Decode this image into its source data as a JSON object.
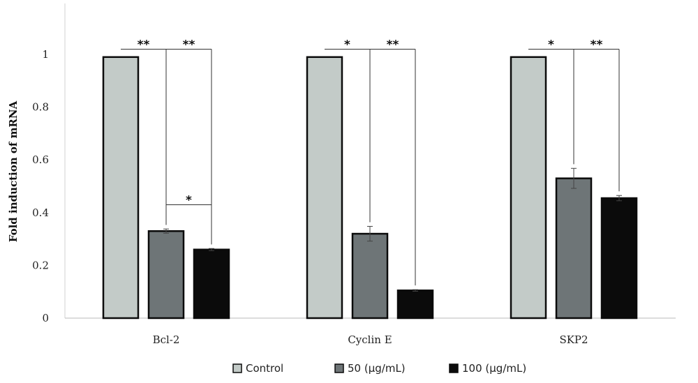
{
  "chart_data": {
    "type": "bar",
    "title": "",
    "xlabel": "",
    "ylabel": "Fold induction of mRNA",
    "ylim": [
      0,
      1.12
    ],
    "yticks": [
      "0",
      "0.2",
      "0.4",
      "0.6",
      "0.8",
      "1"
    ],
    "categories": [
      "Bcl-2",
      "Cyclin E",
      "SKP2"
    ],
    "series": [
      {
        "name": "Control",
        "color": "#c3cbc8",
        "values": [
          0.99,
          0.99,
          0.99
        ],
        "errors": [
          0,
          0,
          0
        ]
      },
      {
        "name": "50 (µg/mL)",
        "color": "#6e7577",
        "values": [
          0.33,
          0.32,
          0.53
        ],
        "errors": [
          0.008,
          0.028,
          0.038
        ]
      },
      {
        "name": "100 (µg/mL)",
        "color": "#0b0b0b",
        "values": [
          0.26,
          0.105,
          0.455
        ],
        "errors": [
          0.004,
          0.003,
          0.01
        ]
      }
    ],
    "significance": [
      {
        "category": "Bcl-2",
        "from": 0,
        "to": 1,
        "label": "**",
        "level": 1.02
      },
      {
        "category": "Bcl-2",
        "from": 1,
        "to": 2,
        "label": "**",
        "level": 1.02
      },
      {
        "category": "Bcl-2",
        "from": 1,
        "to": 2,
        "label": "*",
        "level": 0.43
      },
      {
        "category": "Cyclin E",
        "from": 0,
        "to": 1,
        "label": "*",
        "level": 1.02
      },
      {
        "category": "Cyclin E",
        "from": 1,
        "to": 2,
        "label": "**",
        "level": 1.02
      },
      {
        "category": "SKP2",
        "from": 0,
        "to": 1,
        "label": "*",
        "level": 1.02
      },
      {
        "category": "SKP2",
        "from": 1,
        "to": 2,
        "label": "**",
        "level": 1.02
      }
    ],
    "grid": false,
    "legend_position": "bottom"
  }
}
